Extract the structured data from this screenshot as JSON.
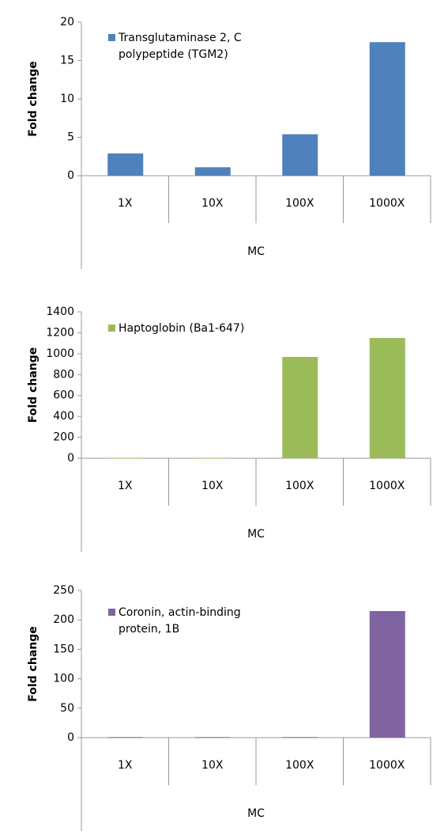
{
  "chart_data": [
    {
      "type": "bar",
      "ylabel": "Fold change",
      "xlabel": "MC",
      "categories": [
        "1X",
        "10X",
        "100X",
        "1000X"
      ],
      "series": [
        {
          "name": "Transglutaminase 2, C polypeptide (TGM2)",
          "color": "#4f81bd",
          "values": [
            2.9,
            1.1,
            5.4,
            17.4
          ]
        }
      ],
      "ylim": [
        0,
        20
      ],
      "yticks": [
        0,
        5,
        10,
        15,
        20
      ]
    },
    {
      "type": "bar",
      "ylabel": "Fold change",
      "xlabel": "MC",
      "categories": [
        "1X",
        "10X",
        "100X",
        "1000X"
      ],
      "series": [
        {
          "name": "Haptoglobin (Ba1-647)",
          "color": "#9bbb59",
          "values": [
            0,
            0,
            969,
            1150
          ]
        }
      ],
      "ylim": [
        0,
        1400
      ],
      "yticks": [
        0,
        200,
        400,
        600,
        800,
        1000,
        1200,
        1400
      ]
    },
    {
      "type": "bar",
      "ylabel": "Fold change",
      "xlabel": "MC",
      "categories": [
        "1X",
        "10X",
        "100X",
        "1000X"
      ],
      "series": [
        {
          "name": "Coronin, actin-binding protein, 1B",
          "color": "#8064a2",
          "values": [
            1,
            1,
            1,
            215
          ]
        }
      ],
      "ylim": [
        0,
        250
      ],
      "yticks": [
        0,
        50,
        100,
        150,
        200,
        250
      ]
    }
  ]
}
